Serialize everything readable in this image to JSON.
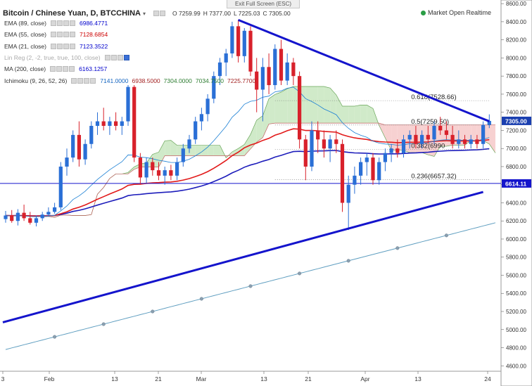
{
  "banner": "Exit Full Screen (ESC)",
  "header": {
    "title": "Bitcoin / Chinese Yuan, D, BTCCHINA",
    "ohlc": {
      "o": "O 7259.99",
      "h": "H 7377.00",
      "l": "L 7225.03",
      "c": "C 7305.00"
    },
    "market_status": "Market Open Realtime"
  },
  "indicators": [
    {
      "label": "EMA (89, close)",
      "values": [
        "6986.4771"
      ],
      "colors": [
        "#0000cc"
      ]
    },
    {
      "label": "EMA (55, close)",
      "values": [
        "7128.6854"
      ],
      "colors": [
        "#cc0000"
      ]
    },
    {
      "label": "EMA (21, close)",
      "values": [
        "7123.3522"
      ],
      "colors": [
        "#0000cc"
      ]
    },
    {
      "label": "Lin Reg (2, -2, true, true, 100, close)",
      "values": [],
      "colors": []
    },
    {
      "label": "MA (200, close)",
      "values": [
        "6163.1257"
      ],
      "colors": [
        "#0000cc"
      ]
    },
    {
      "label": "Ichimoku (9, 26, 52, 26)",
      "values": [
        "7141.0000",
        "6938.5000",
        "7304.0000",
        "7034.7500",
        "7225.7700"
      ],
      "colors": [
        "#1565c0",
        "#a32222",
        "#2e7d32",
        "#2e7d32",
        "#a32222"
      ]
    }
  ],
  "colors": {
    "up": "#2a6fd6",
    "down": "#d8212b",
    "ema55": "#e21a1a",
    "ema89": "#1d1dbb",
    "ema21": "#1a7fd4",
    "trend": "#1414cc",
    "cloud_up": "#c8e6c0",
    "cloud_down": "#f6c9c9",
    "ma200": "#5f9ec0"
  },
  "chart_data": {
    "type": "candlestick",
    "y_ticks": [
      4600,
      4800,
      5000,
      5200,
      5400,
      5600,
      5800,
      6000,
      6200,
      6400,
      6600,
      6800,
      7000,
      7200,
      7400,
      7600,
      7800,
      8000,
      8200,
      8400,
      8600
    ],
    "y_tick_labels": [
      "4600.00",
      "4800.00",
      "5000.00",
      "5200.00",
      "5400.00",
      "5600.00",
      "5800.00",
      "6000.00",
      "6200.00",
      "6400.00",
      "6600.00",
      "6800.00",
      "7000.00",
      "7200.00",
      "7400.00",
      "7600.00",
      "7800.00",
      "8000.00",
      "8200.00",
      "8400.00",
      "8600.00"
    ],
    "ylim": [
      4540,
      8640
    ],
    "x_labels": [
      "3",
      "Feb",
      "13",
      "21",
      "Mar",
      "13",
      "21",
      "Apr",
      "13",
      "24"
    ],
    "price_badge": "7305.00",
    "hline_badge": "6614.11",
    "hline_value": 6614.11,
    "fib_levels": [
      {
        "label": "0.618(7528.66)",
        "value": 7528.66
      },
      {
        "label": "0.5(7259.50)",
        "value": 7259.5
      },
      {
        "label": "0.382(6990",
        "value": 6990
      },
      {
        "label": "0.236(6657.32)",
        "value": 6657.32
      }
    ],
    "candles": [
      {
        "o": 6220,
        "h": 6310,
        "l": 6180,
        "c": 6260
      },
      {
        "o": 6260,
        "h": 6320,
        "l": 6180,
        "c": 6200
      },
      {
        "o": 6200,
        "h": 6330,
        "l": 6150,
        "c": 6290
      },
      {
        "o": 6290,
        "h": 6380,
        "l": 6200,
        "c": 6230
      },
      {
        "o": 6230,
        "h": 6300,
        "l": 6160,
        "c": 6180
      },
      {
        "o": 6180,
        "h": 6260,
        "l": 6140,
        "c": 6230
      },
      {
        "o": 6230,
        "h": 6300,
        "l": 6200,
        "c": 6270
      },
      {
        "o": 6270,
        "h": 6350,
        "l": 6250,
        "c": 6300
      },
      {
        "o": 6300,
        "h": 6400,
        "l": 6280,
        "c": 6350
      },
      {
        "o": 6350,
        "h": 6850,
        "l": 6320,
        "c": 6800
      },
      {
        "o": 6800,
        "h": 7000,
        "l": 6700,
        "c": 6900
      },
      {
        "o": 6900,
        "h": 7200,
        "l": 6850,
        "c": 7150
      },
      {
        "o": 7150,
        "h": 7300,
        "l": 6800,
        "c": 6880
      },
      {
        "o": 6880,
        "h": 7100,
        "l": 6820,
        "c": 7050
      },
      {
        "o": 7050,
        "h": 7300,
        "l": 7000,
        "c": 7250
      },
      {
        "o": 7250,
        "h": 7400,
        "l": 7150,
        "c": 7300
      },
      {
        "o": 7300,
        "h": 7450,
        "l": 7200,
        "c": 7250
      },
      {
        "o": 7250,
        "h": 7350,
        "l": 7150,
        "c": 7300
      },
      {
        "o": 7300,
        "h": 7400,
        "l": 7200,
        "c": 7250
      },
      {
        "o": 7250,
        "h": 7350,
        "l": 7150,
        "c": 7300
      },
      {
        "o": 7300,
        "h": 7700,
        "l": 7250,
        "c": 7680
      },
      {
        "o": 7680,
        "h": 7700,
        "l": 6850,
        "c": 6900
      },
      {
        "o": 6900,
        "h": 6950,
        "l": 6600,
        "c": 6680
      },
      {
        "o": 6680,
        "h": 6900,
        "l": 6620,
        "c": 6850
      },
      {
        "o": 6850,
        "h": 6900,
        "l": 6700,
        "c": 6760
      },
      {
        "o": 6760,
        "h": 6850,
        "l": 6650,
        "c": 6700
      },
      {
        "o": 6700,
        "h": 6800,
        "l": 6600,
        "c": 6760
      },
      {
        "o": 6760,
        "h": 6820,
        "l": 6650,
        "c": 6700
      },
      {
        "o": 6700,
        "h": 6900,
        "l": 6650,
        "c": 6850
      },
      {
        "o": 6850,
        "h": 7050,
        "l": 6800,
        "c": 7000
      },
      {
        "o": 7000,
        "h": 7150,
        "l": 6950,
        "c": 7100
      },
      {
        "o": 7100,
        "h": 7350,
        "l": 7050,
        "c": 7300
      },
      {
        "o": 7300,
        "h": 7450,
        "l": 7200,
        "c": 7380
      },
      {
        "o": 7380,
        "h": 7600,
        "l": 7300,
        "c": 7550
      },
      {
        "o": 7550,
        "h": 7850,
        "l": 7500,
        "c": 7800
      },
      {
        "o": 7800,
        "h": 8000,
        "l": 7700,
        "c": 7950
      },
      {
        "o": 7950,
        "h": 8100,
        "l": 7800,
        "c": 8050
      },
      {
        "o": 8050,
        "h": 8400,
        "l": 8000,
        "c": 8350
      },
      {
        "o": 8350,
        "h": 8420,
        "l": 7950,
        "c": 8020
      },
      {
        "o": 8020,
        "h": 8330,
        "l": 7950,
        "c": 8300
      },
      {
        "o": 8300,
        "h": 8350,
        "l": 7800,
        "c": 7850
      },
      {
        "o": 7850,
        "h": 8000,
        "l": 7400,
        "c": 7650
      },
      {
        "o": 7650,
        "h": 8000,
        "l": 7300,
        "c": 7900
      },
      {
        "o": 7900,
        "h": 8050,
        "l": 7600,
        "c": 7700
      },
      {
        "o": 7700,
        "h": 8150,
        "l": 7650,
        "c": 8100
      },
      {
        "o": 8100,
        "h": 8200,
        "l": 7700,
        "c": 7750
      },
      {
        "o": 7750,
        "h": 8050,
        "l": 7700,
        "c": 7950
      },
      {
        "o": 7950,
        "h": 8000,
        "l": 7700,
        "c": 7800
      },
      {
        "o": 7800,
        "h": 7850,
        "l": 7000,
        "c": 7100
      },
      {
        "o": 7100,
        "h": 7150,
        "l": 6650,
        "c": 6800
      },
      {
        "o": 6800,
        "h": 7300,
        "l": 6750,
        "c": 7200
      },
      {
        "o": 7200,
        "h": 7300,
        "l": 6950,
        "c": 7100
      },
      {
        "o": 7100,
        "h": 7200,
        "l": 6900,
        "c": 7000
      },
      {
        "o": 7000,
        "h": 7150,
        "l": 6850,
        "c": 7100
      },
      {
        "o": 7100,
        "h": 7200,
        "l": 6950,
        "c": 7050
      },
      {
        "o": 7050,
        "h": 7100,
        "l": 6300,
        "c": 6400
      },
      {
        "o": 6400,
        "h": 6700,
        "l": 6100,
        "c": 6600
      },
      {
        "o": 6600,
        "h": 6800,
        "l": 6500,
        "c": 6700
      },
      {
        "o": 6700,
        "h": 6900,
        "l": 6600,
        "c": 6850
      },
      {
        "o": 6850,
        "h": 6950,
        "l": 6700,
        "c": 6900
      },
      {
        "o": 6900,
        "h": 6950,
        "l": 6600,
        "c": 6650
      },
      {
        "o": 6650,
        "h": 6900,
        "l": 6600,
        "c": 6850
      },
      {
        "o": 6850,
        "h": 7000,
        "l": 6750,
        "c": 6950
      },
      {
        "o": 6950,
        "h": 7050,
        "l": 6850,
        "c": 7000
      },
      {
        "o": 7000,
        "h": 7100,
        "l": 6900,
        "c": 6950
      },
      {
        "o": 6950,
        "h": 7150,
        "l": 6900,
        "c": 7100
      },
      {
        "o": 7100,
        "h": 7200,
        "l": 7000,
        "c": 7150
      },
      {
        "o": 7150,
        "h": 7250,
        "l": 7000,
        "c": 7050
      },
      {
        "o": 7050,
        "h": 7200,
        "l": 7000,
        "c": 7150
      },
      {
        "o": 7150,
        "h": 7250,
        "l": 7050,
        "c": 7100
      },
      {
        "o": 7100,
        "h": 7300,
        "l": 7050,
        "c": 7250
      },
      {
        "o": 7250,
        "h": 7350,
        "l": 7150,
        "c": 7200
      },
      {
        "o": 7200,
        "h": 7300,
        "l": 7100,
        "c": 7150
      },
      {
        "o": 7150,
        "h": 7250,
        "l": 7000,
        "c": 7050
      },
      {
        "o": 7050,
        "h": 7200,
        "l": 7000,
        "c": 7100
      },
      {
        "o": 7100,
        "h": 7150,
        "l": 7000,
        "c": 7050
      },
      {
        "o": 7050,
        "h": 7150,
        "l": 7000,
        "c": 7100
      },
      {
        "o": 7100,
        "h": 7150,
        "l": 7000,
        "c": 7050
      },
      {
        "o": 7050,
        "h": 7300,
        "l": 7000,
        "c": 7260
      },
      {
        "o": 7260,
        "h": 7377,
        "l": 7225,
        "c": 7305
      }
    ]
  }
}
